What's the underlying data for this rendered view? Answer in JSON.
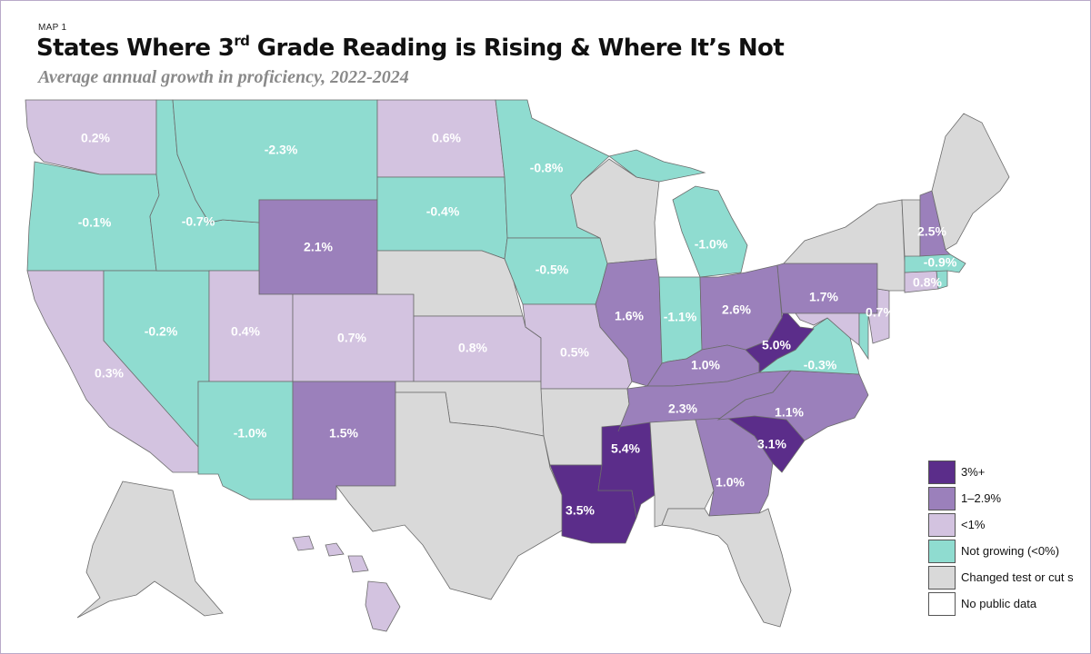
{
  "header": {
    "map_label": "MAP 1",
    "title_a": "States Where 3",
    "title_sup": "rd",
    "title_b": " Grade Reading is Rising & Where It’s Not",
    "subtitle": "Average annual growth in proficiency, 2022-2024"
  },
  "colors": {
    "dark": "#5b2d8a",
    "mid": "#9b80bb",
    "light": "#d3c3e0",
    "teal": "#8fdcd0",
    "gray": "#d9d9d9",
    "none": "#ffffff"
  },
  "legend": [
    {
      "key": "dark",
      "label": "3%+"
    },
    {
      "key": "mid",
      "label": "1–2.9%"
    },
    {
      "key": "light",
      "label": "<1%"
    },
    {
      "key": "teal",
      "label": "Not growing (<0%)"
    },
    {
      "key": "gray",
      "label": "Changed test or cut s"
    },
    {
      "key": "none",
      "label": "No public data"
    }
  ],
  "states": {
    "WA": {
      "category": "light",
      "label": "0.2%"
    },
    "OR": {
      "category": "teal",
      "label": "-0.1%"
    },
    "CA": {
      "category": "light",
      "label": "0.3%"
    },
    "NV": {
      "category": "teal",
      "label": "-0.2%"
    },
    "ID": {
      "category": "teal",
      "label": "-0.7%"
    },
    "MT": {
      "category": "teal",
      "label": "-2.3%"
    },
    "WY": {
      "category": "mid",
      "label": "2.1%"
    },
    "UT": {
      "category": "light",
      "label": "0.4%"
    },
    "AZ": {
      "category": "teal",
      "label": "-1.0%"
    },
    "CO": {
      "category": "light",
      "label": "0.7%"
    },
    "NM": {
      "category": "mid",
      "label": "1.5%"
    },
    "ND": {
      "category": "light",
      "label": "0.6%"
    },
    "SD": {
      "category": "teal",
      "label": "-0.4%"
    },
    "NE": {
      "category": "gray",
      "label": ""
    },
    "KS": {
      "category": "light",
      "label": "0.8%"
    },
    "OK": {
      "category": "gray",
      "label": ""
    },
    "TX": {
      "category": "gray",
      "label": ""
    },
    "MN": {
      "category": "teal",
      "label": "-0.8%"
    },
    "IA": {
      "category": "teal",
      "label": "-0.5%"
    },
    "MO": {
      "category": "light",
      "label": "0.5%"
    },
    "AR": {
      "category": "gray",
      "label": ""
    },
    "LA": {
      "category": "dark",
      "label": "3.5%"
    },
    "WI": {
      "category": "gray",
      "label": ""
    },
    "IL": {
      "category": "mid",
      "label": "1.6%"
    },
    "MS": {
      "category": "dark",
      "label": "5.4%"
    },
    "MI": {
      "category": "teal",
      "label": "-1.0%"
    },
    "IN": {
      "category": "teal",
      "label": "-1.1%"
    },
    "KY": {
      "category": "mid",
      "label": "1.0%"
    },
    "TN": {
      "category": "mid",
      "label": "2.3%"
    },
    "AL": {
      "category": "gray",
      "label": ""
    },
    "GA": {
      "category": "mid",
      "label": "1.0%"
    },
    "FL": {
      "category": "gray",
      "label": ""
    },
    "SC": {
      "category": "dark",
      "label": "3.1%"
    },
    "NC": {
      "category": "mid",
      "label": "1.1%"
    },
    "VA": {
      "category": "teal",
      "label": "-0.3%"
    },
    "WV": {
      "category": "dark",
      "label": "5.0%"
    },
    "OH": {
      "category": "mid",
      "label": "2.6%"
    },
    "PA": {
      "category": "mid",
      "label": "1.7%"
    },
    "NY": {
      "category": "gray",
      "label": ""
    },
    "NJ": {
      "category": "light",
      "label": "0.7%"
    },
    "MD": {
      "category": "light",
      "label": ""
    },
    "DE": {
      "category": "teal",
      "label": ""
    },
    "CT": {
      "category": "light",
      "label": "0.8%"
    },
    "RI": {
      "category": "teal",
      "label": ""
    },
    "MA": {
      "category": "teal",
      "label": "-0.9%"
    },
    "VT": {
      "category": "gray",
      "label": ""
    },
    "NH": {
      "category": "mid",
      "label": "2.5%"
    },
    "ME": {
      "category": "gray",
      "label": ""
    },
    "AK": {
      "category": "gray",
      "label": ""
    },
    "HI": {
      "category": "light",
      "label": ""
    }
  }
}
